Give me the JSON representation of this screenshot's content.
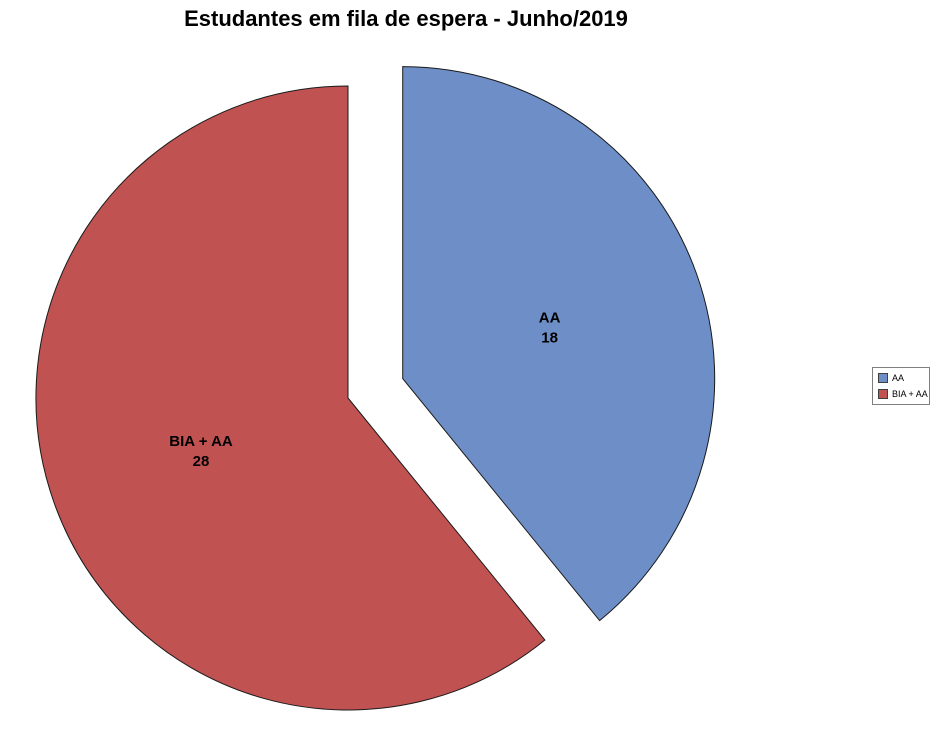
{
  "chart_data": {
    "type": "pie",
    "title": "Estudantes em fila de espera - Junho/2019",
    "total": 46,
    "start_angle_deg": 0,
    "direction": "clockwise",
    "center": [
      348,
      398
    ],
    "radius": 312,
    "label_radius_frac": 0.5,
    "slice_border_color": "#1a1a1a",
    "slices": [
      {
        "id": "aa",
        "label": "AA",
        "value": 18,
        "color": "#6d8ec6",
        "explode": 58
      },
      {
        "id": "bia-aa",
        "label": "BIA + AA",
        "value": 28,
        "color": "#c05252",
        "explode": 0
      }
    ],
    "legend": {
      "position": "right",
      "items": [
        {
          "label": "AA",
          "color": "#6d8ec6"
        },
        {
          "label": "BIA + AA",
          "color": "#c05252"
        }
      ]
    }
  }
}
